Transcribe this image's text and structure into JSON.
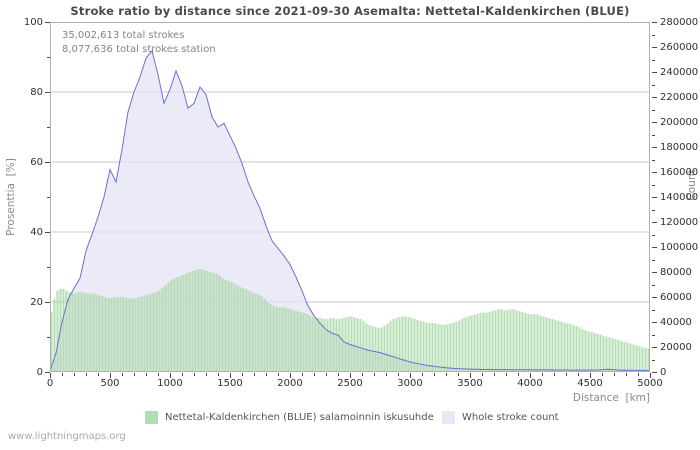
{
  "chart_data": {
    "type": "bar+area-line",
    "title": "Stroke ratio by distance since 2021-09-30 Asemalta: Nettetal-Kaldenkirchen (BLUE)",
    "annotations": [
      "35,002,613 total strokes",
      "8,077,636 total strokes station"
    ],
    "xlabel": "Distance  [km]",
    "ylabel_left": "Prosenttia  [%]",
    "ylabel_right": "Count",
    "x_range": [
      0,
      5000
    ],
    "y_left_range": [
      0,
      100
    ],
    "y_right_range": [
      0,
      280000
    ],
    "grid_percent": [
      20,
      40,
      60,
      80
    ],
    "legend_position": "bottom",
    "axes": {
      "x": {
        "major_step": 500,
        "minor_step": 100
      },
      "left": {
        "major_step": 20,
        "minor_step": 10
      },
      "right": {
        "major_step": 20000,
        "minor_step": 10000
      }
    },
    "x_km": {
      "start": 0,
      "step": 50,
      "count": 101
    },
    "series": [
      {
        "name": "Nettetal-Kaldenkirchen (BLUE) salamoinnin iskusuhde",
        "type": "bar",
        "axis": "left",
        "unit": "%",
        "color": "#a5d6a5",
        "bar_km_width": 25,
        "values": [
          15,
          23,
          24,
          23,
          22.5,
          23,
          22.5,
          22.5,
          22,
          21.5,
          21,
          21.5,
          21.5,
          21,
          21,
          21.5,
          22,
          22.5,
          23,
          24.5,
          26,
          27,
          27.5,
          28.5,
          29,
          29.5,
          29,
          28.5,
          28,
          26.5,
          26,
          25,
          24,
          23.5,
          22.5,
          22,
          20.5,
          19,
          18.5,
          18.5,
          18,
          17.5,
          17,
          16.5,
          15.5,
          15.5,
          15,
          15.5,
          15,
          15.5,
          16,
          15.5,
          15,
          13.5,
          13,
          12.5,
          13.5,
          15,
          15.5,
          16,
          15.5,
          15,
          14.5,
          14,
          14,
          13.5,
          13.5,
          14,
          14.5,
          15.5,
          16,
          16.5,
          17,
          17,
          17.5,
          18,
          17.5,
          18,
          17.5,
          17,
          16.5,
          16.5,
          16,
          15.5,
          15,
          14.5,
          14,
          13.5,
          13,
          12,
          11.5,
          11,
          10.5,
          10,
          9.5,
          9,
          8.5,
          8,
          7.5,
          7,
          6.5
        ]
      },
      {
        "name": "Whole stroke count",
        "type": "area-line",
        "axis": "right",
        "unit": "strokes",
        "color": "#6e6ed2",
        "fill": "#e4e4f4",
        "values": [
          1000,
          15000,
          40000,
          58000,
          67000,
          75000,
          97000,
          110000,
          124000,
          140000,
          162000,
          152000,
          178000,
          208000,
          224000,
          236000,
          251000,
          257000,
          238000,
          215000,
          226000,
          241000,
          229000,
          211000,
          215000,
          228000,
          222000,
          204000,
          196000,
          199000,
          189000,
          179000,
          167000,
          152000,
          141000,
          131000,
          117000,
          105000,
          99000,
          93000,
          86000,
          76000,
          65000,
          53000,
          45000,
          39000,
          34000,
          31000,
          29500,
          24000,
          22000,
          20500,
          19000,
          17500,
          16500,
          15500,
          14000,
          12500,
          11000,
          9500,
          8000,
          7000,
          6000,
          5200,
          4500,
          4000,
          3400,
          3000,
          2700,
          2500,
          2300,
          2200,
          2000,
          2000,
          1900,
          1900,
          1900,
          1800,
          1800,
          1800,
          1800,
          1700,
          1700,
          1700,
          1600,
          1600,
          1600,
          1500,
          1500,
          1500,
          1500,
          1600,
          1800,
          2200,
          1800,
          1500,
          1400,
          1400,
          1300,
          1300,
          1200
        ]
      }
    ],
    "colors": {
      "grid": "#c8c8c8",
      "border": "#b0b0b0",
      "legend_count_swatch": "#e9e9f6",
      "legend_ratio_swatch": "#b3deb3"
    }
  },
  "footer": {
    "text": "www.lightningmaps.org"
  }
}
